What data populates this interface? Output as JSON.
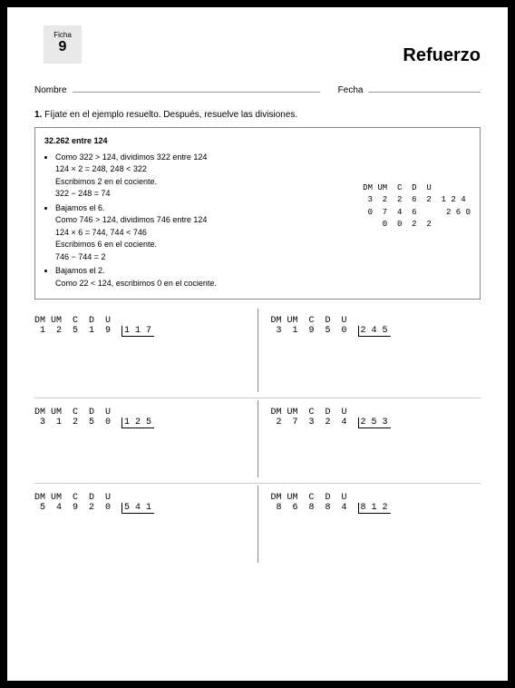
{
  "header": {
    "ficha_label": "Ficha",
    "ficha_num": "9",
    "title": "Refuerzo",
    "name_label": "Nombre",
    "date_label": "Fecha"
  },
  "instruction": {
    "num": "1.",
    "text": "Fíjate en el ejemplo resuelto. Después, resuelve las divisiones."
  },
  "example": {
    "title": "32.262 entre 124",
    "b1_l1": "Como 322 > 124, dividimos 322 entre 124",
    "b1_l2": "124 × 2 = 248, 248 < 322",
    "b1_l3": "Escribimos 2 en el cociente.",
    "b1_l4": "322 − 248 = 74",
    "b2_l1": "Bajamos el 6.",
    "b2_l2": "Como 746 > 124, dividimos 746 entre 124",
    "b2_l3": "124 × 6 = 744, 744 < 746",
    "b2_l4": "Escribimos 6 en el cociente.",
    "b2_l5": "746 − 744 = 2",
    "b3_l1": "Bajamos el 2.",
    "b3_l2": "Como 22 < 124, escribimos 0 en el cociente.",
    "work_head": "DM UM  C  D  U",
    "work_r1a": " 3  2  2  6  2  ",
    "work_r1b": "1 2 4",
    "work_r2a": " 0  7  4  6     ",
    "work_r2b": " 2 6 0",
    "work_r3": "    0  0  2  2"
  },
  "problems": {
    "head": "DM UM  C  D  U",
    "p1": {
      "digits": " 1  2  5  1  9  ",
      "divisor": "1 1 7"
    },
    "p2": {
      "digits": " 3  1  9  5  0  ",
      "divisor": "2 4 5"
    },
    "p3": {
      "digits": " 3  1  2  5  0  ",
      "divisor": "1 2 5"
    },
    "p4": {
      "digits": " 2  7  3  2  4  ",
      "divisor": "2 5 3"
    },
    "p5": {
      "digits": " 5  4  9  2  0  ",
      "divisor": "5 4 1"
    },
    "p6": {
      "digits": " 8  6  8  8  4  ",
      "divisor": "8 1 2"
    }
  }
}
